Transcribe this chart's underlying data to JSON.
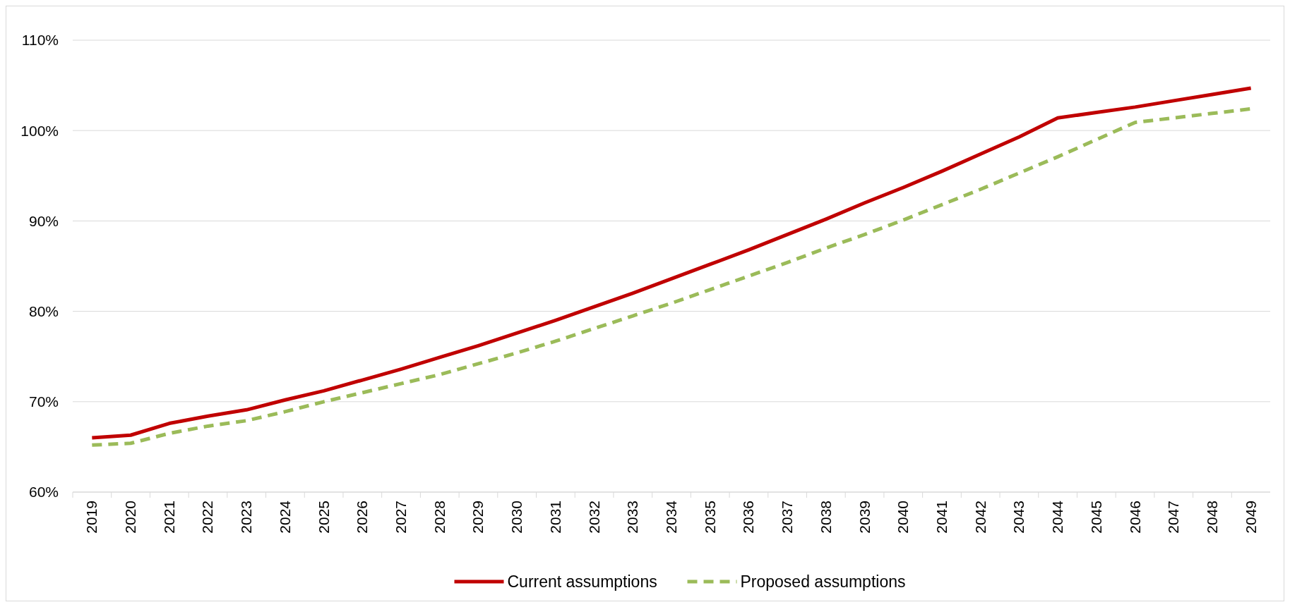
{
  "chart_data": {
    "type": "line",
    "categories": [
      "2019",
      "2020",
      "2021",
      "2022",
      "2023",
      "2024",
      "2025",
      "2026",
      "2027",
      "2028",
      "2029",
      "2030",
      "2031",
      "2032",
      "2033",
      "2034",
      "2035",
      "2036",
      "2037",
      "2038",
      "2039",
      "2040",
      "2041",
      "2042",
      "2043",
      "2044",
      "2045",
      "2046",
      "2047",
      "2048",
      "2049"
    ],
    "series": [
      {
        "name": "Current assumptions",
        "color": "#c00000",
        "line_style": "solid",
        "values": [
          66.0,
          66.3,
          67.6,
          68.4,
          69.1,
          70.2,
          71.2,
          72.4,
          73.6,
          74.9,
          76.2,
          77.6,
          79.0,
          80.5,
          82.0,
          83.6,
          85.2,
          86.8,
          88.5,
          90.2,
          92.0,
          93.7,
          95.5,
          97.4,
          99.3,
          101.4,
          102.0,
          102.6,
          103.3,
          104.0,
          104.7
        ]
      },
      {
        "name": "Proposed assumptions",
        "color": "#9bbb59",
        "line_style": "dashed",
        "values": [
          65.2,
          65.4,
          66.5,
          67.3,
          67.9,
          68.9,
          70.0,
          71.0,
          72.0,
          73.0,
          74.2,
          75.4,
          76.7,
          78.1,
          79.5,
          80.9,
          82.4,
          83.9,
          85.4,
          87.0,
          88.5,
          90.1,
          91.8,
          93.5,
          95.3,
          97.1,
          99.0,
          100.9,
          101.4,
          101.9,
          102.4
        ]
      }
    ],
    "ylim": [
      60,
      110
    ],
    "yticks": [
      {
        "value": 60,
        "label": "60%"
      },
      {
        "value": 70,
        "label": "70%"
      },
      {
        "value": 80,
        "label": "80%"
      },
      {
        "value": 90,
        "label": "90%"
      },
      {
        "value": 100,
        "label": "100%"
      },
      {
        "value": 110,
        "label": "110%"
      }
    ],
    "grid": "y",
    "legend": "bottom",
    "marker": "none"
  }
}
